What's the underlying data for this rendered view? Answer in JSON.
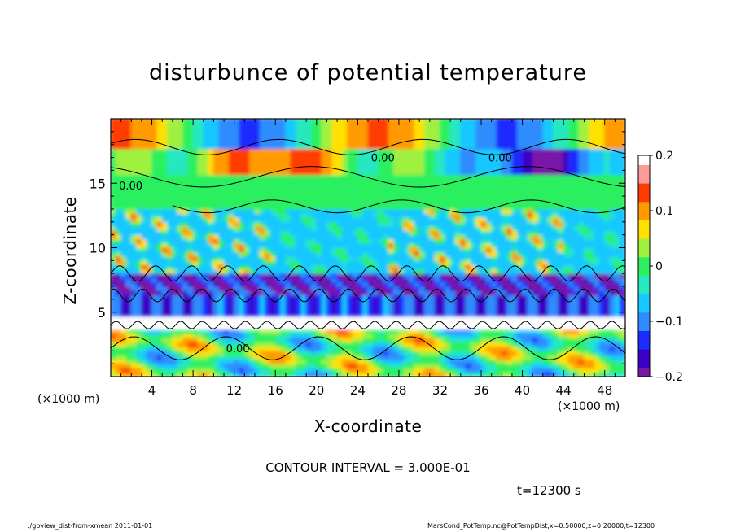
{
  "header": {
    "title": "disturbunce of potential temperature"
  },
  "footer": {
    "left": "./gpview_dist-from-xmean   2011-01-01",
    "right": "MarsCond_PotTemp.nc@PotTempDist,x=0:50000,z=0:20000,t=12300"
  },
  "annotations": {
    "contour_interval": "CONTOUR INTERVAL = 3.000E-01",
    "time": "t=12300 s",
    "x_unit_left": "(×1000 m)",
    "x_unit_right": "(×1000 m)"
  },
  "chart_data": {
    "type": "heatmap",
    "title": "disturbunce of potential temperature",
    "xlabel": "X-coordinate",
    "ylabel": "Z-coordinate",
    "xlim": [
      0,
      50
    ],
    "ylim": [
      0,
      20
    ],
    "x_ticks": [
      4,
      8,
      12,
      16,
      20,
      24,
      28,
      32,
      36,
      40,
      44,
      48
    ],
    "y_ticks": [
      5,
      10,
      15
    ],
    "colorbar": {
      "min": -0.2,
      "max": 0.2,
      "ticks": [
        0.2,
        0.1,
        0,
        -0.1,
        -0.2
      ],
      "tick_labels": [
        "0.2",
        "0.1",
        "0",
        "−0.1",
        "−0.2"
      ]
    },
    "contour_labels": [
      "0.00",
      "0.00",
      "0.00",
      "0.00"
    ],
    "legend": "right",
    "grid": false,
    "contour_interval": 0.3,
    "time_s": 12300
  }
}
